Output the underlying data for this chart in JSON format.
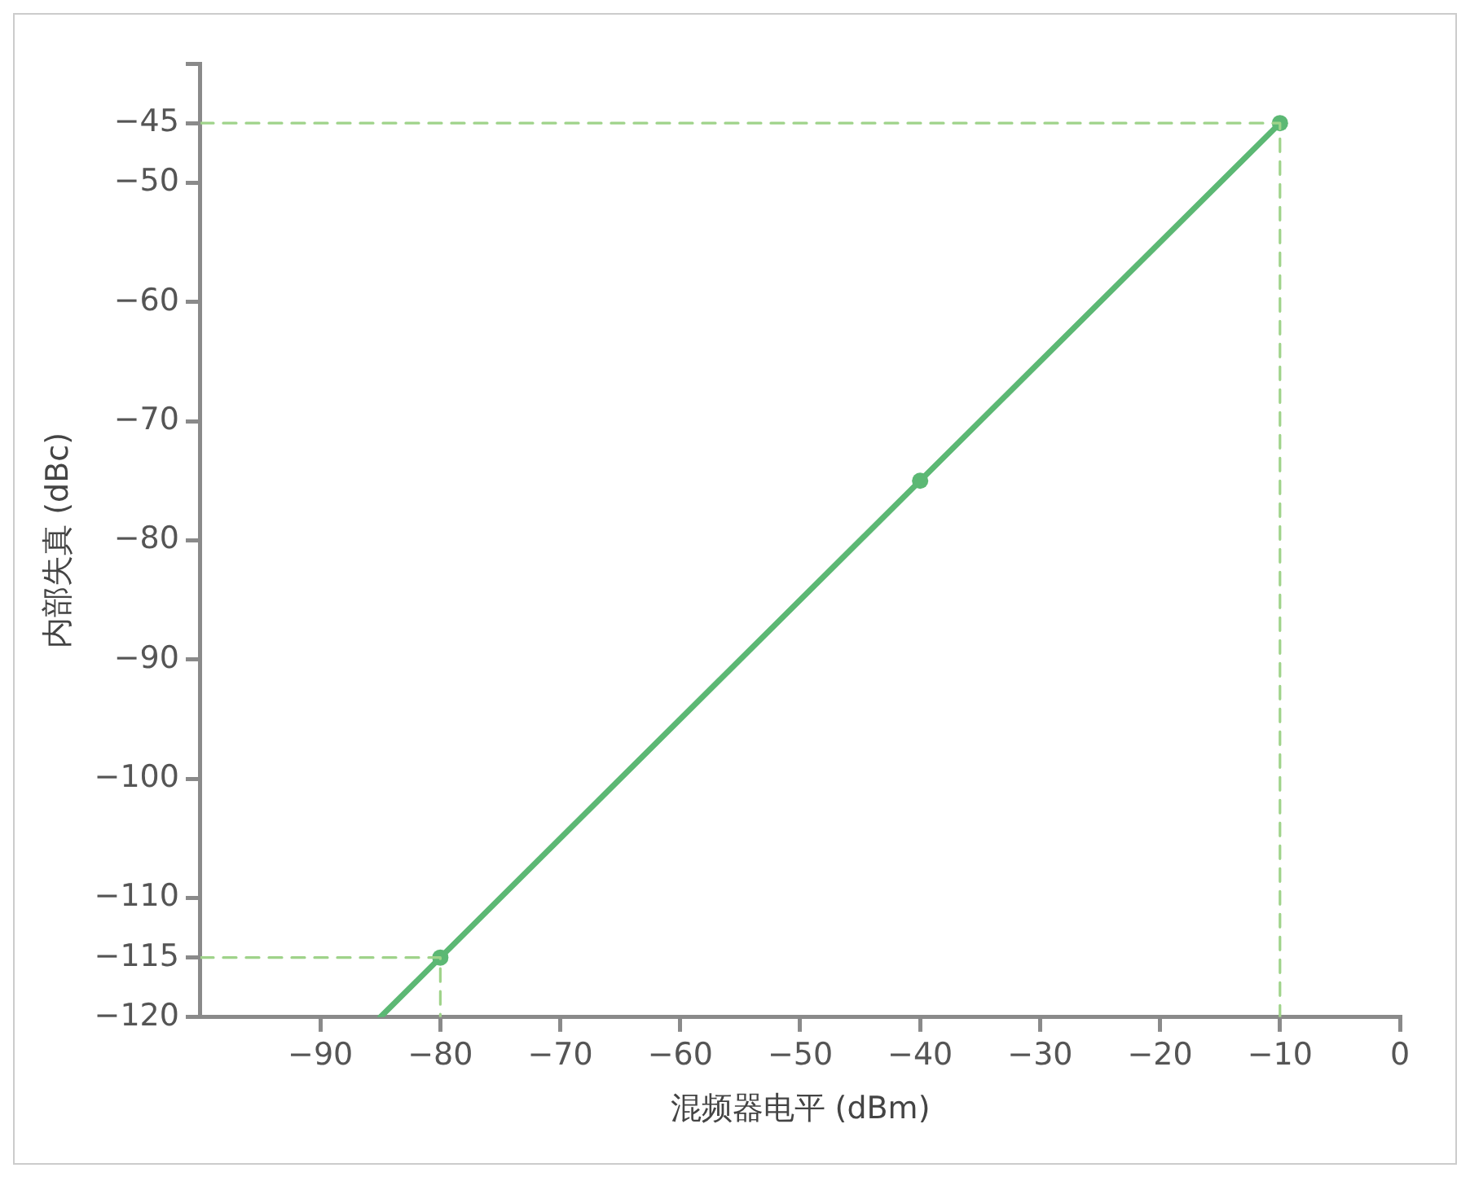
{
  "chart_data": {
    "type": "line",
    "xlabel": "混频器电平 (dBm)",
    "ylabel": "内部失真 (dBc)",
    "xlim": [
      -100,
      0
    ],
    "ylim": [
      -120,
      -40
    ],
    "xticks": [
      {
        "value": -90,
        "label": "−90"
      },
      {
        "value": -80,
        "label": "−80"
      },
      {
        "value": -70,
        "label": "−70"
      },
      {
        "value": -60,
        "label": "−60"
      },
      {
        "value": -50,
        "label": "−50"
      },
      {
        "value": -40,
        "label": "−40"
      },
      {
        "value": -30,
        "label": "−30"
      },
      {
        "value": -20,
        "label": "−20"
      },
      {
        "value": -10,
        "label": "−10"
      },
      0
    ],
    "yticks": [
      {
        "value": -120,
        "label": "−120"
      },
      {
        "value": -115,
        "label": "−115"
      },
      {
        "value": -110,
        "label": "−110"
      },
      {
        "value": -100,
        "label": "−100"
      },
      {
        "value": -90,
        "label": "−90"
      },
      {
        "value": -80,
        "label": "−80"
      },
      {
        "value": -70,
        "label": "−70"
      },
      {
        "value": -60,
        "label": "−60"
      },
      {
        "value": -50,
        "label": "−50"
      },
      {
        "value": -45,
        "label": "−45"
      },
      {
        "value": -40,
        "label": null
      }
    ],
    "grid": false,
    "legend": false,
    "series": [
      {
        "type": "line",
        "color": "#9fd38a",
        "line_style": "dashed",
        "marker": "none",
        "x": [
          -100,
          -10,
          -10
        ],
        "values": [
          -45,
          -45,
          -120
        ]
      },
      {
        "type": "line",
        "color": "#9fd38a",
        "line_style": "dashed",
        "marker": "none",
        "x": [
          -100,
          -80,
          -80
        ],
        "values": [
          -115,
          -115,
          -120
        ]
      },
      {
        "type": "line",
        "color": "#5cb874",
        "line_style": "solid",
        "marker": "none",
        "x": [
          -85,
          -10
        ],
        "values": [
          -120,
          -45
        ]
      },
      {
        "type": "scatter",
        "color": "#5cb874",
        "marker": "circle",
        "x": [
          -80,
          -40,
          -10
        ],
        "values": [
          -115,
          -75,
          -45
        ]
      }
    ]
  }
}
